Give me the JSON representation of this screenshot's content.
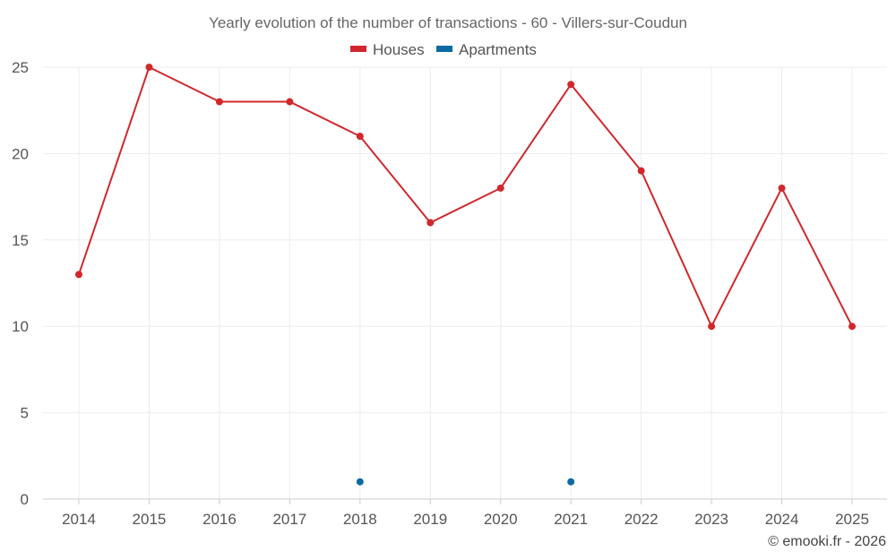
{
  "chart_data": {
    "type": "line",
    "title": "Yearly evolution of the number of transactions - 60 - Villers-sur-Coudun",
    "categories": [
      "2014",
      "2015",
      "2016",
      "2017",
      "2018",
      "2019",
      "2020",
      "2021",
      "2022",
      "2023",
      "2024",
      "2025"
    ],
    "y_ticks": [
      "0",
      "5",
      "10",
      "15",
      "20",
      "25"
    ],
    "ylim": [
      0,
      25
    ],
    "grid": true,
    "legend_position": "top",
    "series": [
      {
        "name": "Houses",
        "color": "#d0282d",
        "values": [
          13,
          25,
          23,
          23,
          21,
          16,
          18,
          24,
          19,
          10,
          18,
          10
        ]
      },
      {
        "name": "Apartments",
        "color": "#0b6aa2",
        "values": [
          null,
          null,
          null,
          null,
          1,
          null,
          null,
          1,
          null,
          null,
          null,
          null
        ]
      }
    ]
  },
  "credit": "© emooki.fr - 2026"
}
